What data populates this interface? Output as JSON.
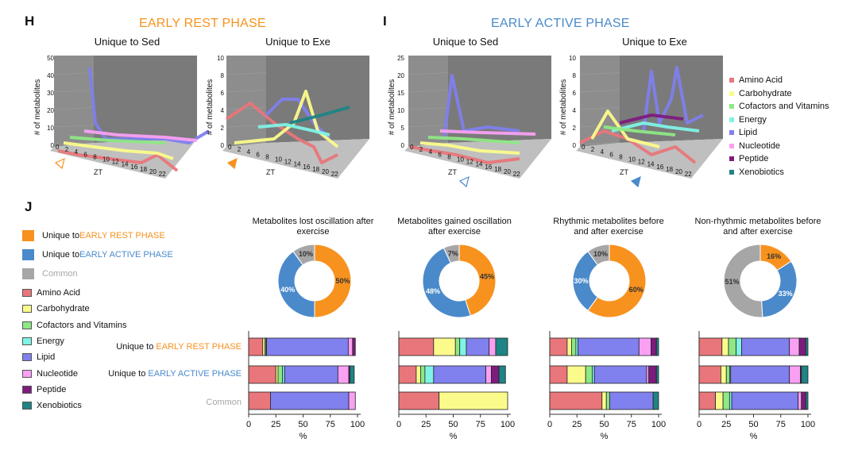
{
  "colors": {
    "orange": "#F7921E",
    "blue": "#4A8ACB",
    "gray": "#A6A6A6",
    "categories": [
      "#E8767A",
      "#FBFB8C",
      "#8EE885",
      "#7FF3E6",
      "#8080EE",
      "#F9A0F3",
      "#7D1C7D",
      "#1E8484"
    ]
  },
  "panels": {
    "H": {
      "letter": "H",
      "title": "EARLY REST PHASE"
    },
    "I": {
      "letter": "I",
      "title": "EARLY ACTIVE PHASE"
    },
    "J": {
      "letter": "J"
    }
  },
  "line3d": {
    "charts": [
      {
        "subtitle": "Unique to Sed",
        "ymax": "50",
        "yticks": [
          "0",
          "10",
          "20",
          "30",
          "40",
          "50"
        ],
        "marker": "open-orange"
      },
      {
        "subtitle": "Unique to Exe",
        "ymax": "10",
        "yticks": [
          "0",
          "2",
          "4",
          "6",
          "8",
          "10"
        ],
        "marker": "filled-orange"
      },
      {
        "subtitle": "Unique to Sed",
        "ymax": "25",
        "yticks": [
          "0",
          "5",
          "10",
          "15",
          "20",
          "25"
        ],
        "marker": "open-blue"
      },
      {
        "subtitle": "Unique to Exe",
        "ymax": "10",
        "yticks": [
          "0",
          "2",
          "4",
          "6",
          "8",
          "10"
        ],
        "marker": "filled-blue"
      }
    ],
    "ylabel": "# of metabolites",
    "xlabel": "ZT",
    "xticks": [
      "0",
      "2",
      "4",
      "6",
      "8",
      "10",
      "12",
      "14",
      "16",
      "18",
      "20",
      "22"
    ]
  },
  "legend_top": [
    "Amino Acid",
    "Carbohydrate",
    "Cofactors and Vitamins",
    "Energy",
    "Lipid",
    "Nucleotide",
    "Peptide",
    "Xenobiotics"
  ],
  "legend_j": {
    "phase_items": [
      {
        "prefix": "Unique to ",
        "phase": "EARLY REST PHASE",
        "color": "orange"
      },
      {
        "prefix": "Unique to ",
        "phase": "EARLY ACTIVE PHASE",
        "color": "blue"
      },
      {
        "prefix": "",
        "phase": "Common",
        "color": "gray"
      }
    ],
    "categories": [
      "Amino Acid",
      "Carbohydrate",
      "Cofactors and Vitamins",
      "Energy",
      "Lipid",
      "Nucleotide",
      "Peptide",
      "Xenobiotics"
    ]
  },
  "row_labels": [
    {
      "prefix": "Unique to ",
      "phase": "EARLY REST PHASE",
      "color": "orange"
    },
    {
      "prefix": "Unique to ",
      "phase": "EARLY ACTIVE PHASE",
      "color": "blue"
    },
    {
      "prefix": "",
      "phase": "Common",
      "color": "gray"
    }
  ],
  "chart_data": [
    {
      "type": "pie",
      "title": "Metabolites lost oscillation after exercise",
      "slices": [
        {
          "label": "50%",
          "value": 50,
          "color": "orange"
        },
        {
          "label": "40%",
          "value": 40,
          "color": "blue"
        },
        {
          "label": "10%",
          "value": 10,
          "color": "gray"
        }
      ],
      "bar": {
        "type": "bar",
        "xlabel": "%",
        "xticks": [
          "0",
          "25",
          "50",
          "75",
          "100"
        ],
        "rows": [
          [
            13,
            2,
            1,
            0.5,
            75,
            4,
            2.5,
            0
          ],
          [
            25,
            2,
            4,
            2,
            49,
            10,
            1,
            4
          ],
          [
            20,
            0,
            0,
            0,
            72,
            6,
            0,
            0
          ]
        ]
      }
    },
    {
      "type": "pie",
      "title": "Metabolites gained oscillation after exercise",
      "slices": [
        {
          "label": "45%",
          "value": 45,
          "color": "orange"
        },
        {
          "label": "48%",
          "value": 48,
          "color": "blue"
        },
        {
          "label": "7%",
          "value": 7,
          "color": "gray"
        }
      ],
      "bar": {
        "type": "bar",
        "xlabel": "%",
        "xticks": [
          "0",
          "25",
          "50",
          "75",
          "100"
        ],
        "rows": [
          [
            32,
            20,
            4,
            6,
            21,
            6,
            0,
            11
          ],
          [
            16,
            4,
            4,
            8,
            48,
            5,
            7,
            6
          ],
          [
            37,
            63,
            0,
            0,
            0,
            0,
            0,
            0
          ]
        ]
      }
    },
    {
      "type": "pie",
      "title": "Rhythmic metabolites before and after exercise",
      "slices": [
        {
          "label": "60%",
          "value": 60,
          "color": "orange"
        },
        {
          "label": "30%",
          "value": 30,
          "color": "blue"
        },
        {
          "label": "10%",
          "value": 10,
          "color": "gray"
        }
      ],
      "bar": {
        "type": "bar",
        "xlabel": "%",
        "xticks": [
          "0",
          "25",
          "50",
          "75",
          "100"
        ],
        "rows": [
          [
            16,
            4,
            4,
            2,
            56,
            11,
            5,
            2
          ],
          [
            16,
            17,
            6,
            2,
            48,
            2,
            7,
            2
          ],
          [
            48,
            4,
            3,
            0,
            40,
            0,
            0,
            5
          ]
        ]
      }
    },
    {
      "type": "pie",
      "title": "Non-rhythmic metabolites before and after exercise",
      "slices": [
        {
          "label": "16%",
          "value": 16,
          "color": "orange"
        },
        {
          "label": "33%",
          "value": 33,
          "color": "blue"
        },
        {
          "label": "51%",
          "value": 51,
          "color": "gray"
        }
      ],
      "bar": {
        "type": "bar",
        "xlabel": "%",
        "xticks": [
          "0",
          "25",
          "50",
          "75",
          "100"
        ],
        "rows": [
          [
            21,
            6,
            7,
            5,
            44,
            9,
            6,
            2
          ],
          [
            20,
            5,
            3,
            1,
            54,
            10,
            1,
            6
          ],
          [
            15,
            7,
            6,
            2,
            61,
            3,
            4,
            2
          ]
        ]
      }
    }
  ]
}
